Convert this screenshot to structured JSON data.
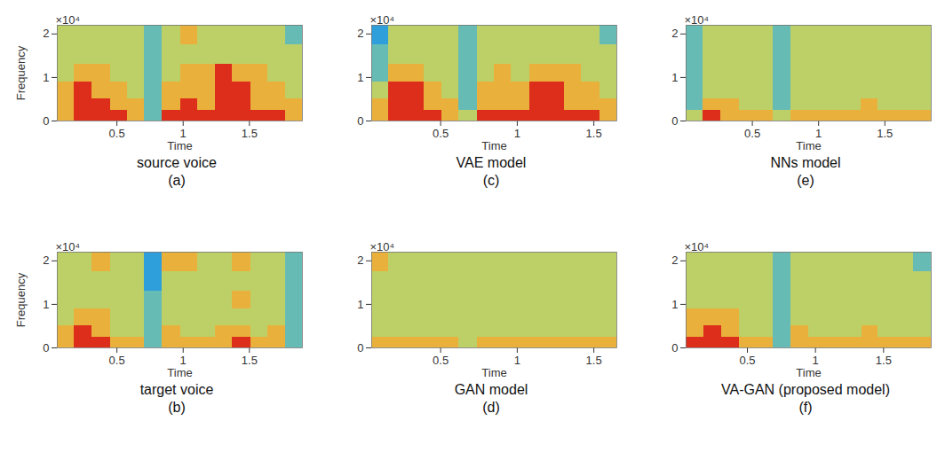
{
  "chart_data": [
    {
      "type": "heatmap",
      "panel_label": "(a)",
      "title": "source voice",
      "xlabel": "Time",
      "ylabel": "Frequency",
      "y_exponent": "×10⁴",
      "xlim": [
        0.05,
        1.9
      ],
      "ylim": [
        0,
        2.2
      ],
      "xticks": [
        0.5,
        1,
        1.5
      ],
      "yticks": [
        0,
        1,
        2
      ],
      "zlim": [
        0,
        4
      ],
      "x_bins": [
        0.05,
        0.18,
        0.31,
        0.45,
        0.58,
        0.71,
        0.84,
        0.98,
        1.11,
        1.24,
        1.37,
        1.51,
        1.64,
        1.77,
        1.9
      ],
      "y_bins": [
        0,
        0.25,
        0.5,
        0.9,
        1.3,
        1.75,
        2.2
      ],
      "cells": [
        [
          3,
          4,
          4,
          4,
          3,
          1,
          4,
          4,
          4,
          4,
          4,
          4,
          4,
          3
        ],
        [
          3,
          4,
          4,
          3,
          3,
          1,
          3,
          4,
          3,
          4,
          4,
          3,
          3,
          3
        ],
        [
          3,
          4,
          3,
          3,
          2,
          1,
          3,
          3,
          3,
          4,
          4,
          3,
          3,
          2
        ],
        [
          2,
          3,
          3,
          2,
          2,
          1,
          2,
          3,
          3,
          4,
          3,
          3,
          2,
          2
        ],
        [
          2,
          2,
          2,
          2,
          2,
          1,
          2,
          2,
          2,
          2,
          2,
          2,
          2,
          2
        ],
        [
          2,
          2,
          2,
          2,
          2,
          1,
          2,
          3,
          2,
          2,
          2,
          2,
          2,
          1
        ]
      ]
    },
    {
      "type": "heatmap",
      "panel_label": "(b)",
      "title": "target voice",
      "xlabel": "Time",
      "ylabel": "Frequency",
      "y_exponent": "×10⁴",
      "xlim": [
        0.05,
        1.9
      ],
      "ylim": [
        0,
        2.2
      ],
      "xticks": [
        0.5,
        1,
        1.5
      ],
      "yticks": [
        0,
        1,
        2
      ],
      "zlim": [
        0,
        4
      ],
      "x_bins": [
        0.05,
        0.18,
        0.31,
        0.45,
        0.58,
        0.71,
        0.84,
        0.98,
        1.11,
        1.24,
        1.37,
        1.51,
        1.64,
        1.77,
        1.9
      ],
      "y_bins": [
        0,
        0.25,
        0.5,
        0.9,
        1.3,
        1.75,
        2.2
      ],
      "cells": [
        [
          3,
          4,
          4,
          3,
          3,
          1,
          3,
          3,
          3,
          3,
          4,
          3,
          3,
          1
        ],
        [
          3,
          4,
          3,
          2,
          2,
          1,
          3,
          2,
          2,
          3,
          3,
          2,
          3,
          1
        ],
        [
          2,
          3,
          3,
          2,
          2,
          1,
          2,
          2,
          2,
          2,
          2,
          2,
          2,
          1
        ],
        [
          2,
          2,
          2,
          2,
          2,
          1,
          2,
          2,
          2,
          2,
          3,
          2,
          2,
          1
        ],
        [
          2,
          2,
          2,
          2,
          2,
          0,
          2,
          2,
          2,
          2,
          2,
          2,
          2,
          1
        ],
        [
          2,
          2,
          3,
          2,
          2,
          0,
          3,
          3,
          2,
          2,
          3,
          2,
          2,
          1
        ]
      ]
    },
    {
      "type": "heatmap",
      "panel_label": "(c)",
      "title": "VAE model",
      "xlabel": "Time",
      "y_exponent": "×10⁴",
      "xlim": [
        0.05,
        1.65
      ],
      "ylim": [
        0,
        2.2
      ],
      "xticks": [
        0.5,
        1,
        1.5
      ],
      "yticks": [
        0,
        1,
        2
      ],
      "zlim": [
        0,
        4
      ],
      "x_bins": [
        0.05,
        0.16,
        0.28,
        0.39,
        0.51,
        0.62,
        0.74,
        0.85,
        0.96,
        1.08,
        1.19,
        1.31,
        1.42,
        1.54,
        1.65
      ],
      "y_bins": [
        0,
        0.25,
        0.5,
        0.9,
        1.3,
        1.75,
        2.2
      ],
      "cells": [
        [
          3,
          4,
          4,
          4,
          3,
          2,
          4,
          4,
          4,
          4,
          4,
          4,
          4,
          3
        ],
        [
          3,
          4,
          4,
          3,
          3,
          1,
          3,
          3,
          3,
          4,
          4,
          3,
          3,
          3
        ],
        [
          2,
          4,
          4,
          3,
          2,
          1,
          3,
          3,
          3,
          4,
          4,
          3,
          3,
          2
        ],
        [
          1,
          3,
          3,
          2,
          2,
          1,
          2,
          3,
          2,
          3,
          3,
          3,
          2,
          2
        ],
        [
          1,
          2,
          2,
          2,
          2,
          1,
          2,
          2,
          2,
          2,
          2,
          2,
          2,
          2
        ],
        [
          0,
          2,
          2,
          2,
          2,
          1,
          2,
          2,
          2,
          2,
          2,
          2,
          2,
          1
        ]
      ]
    },
    {
      "type": "heatmap",
      "panel_label": "(d)",
      "title": "GAN model",
      "xlabel": "Time",
      "y_exponent": "×10⁴",
      "xlim": [
        0.05,
        1.65
      ],
      "ylim": [
        0,
        2.2
      ],
      "xticks": [
        0.5,
        1,
        1.5
      ],
      "yticks": [
        0,
        1,
        2
      ],
      "zlim": [
        0,
        4
      ],
      "x_bins": [
        0.05,
        0.16,
        0.28,
        0.39,
        0.51,
        0.62,
        0.74,
        0.85,
        0.96,
        1.08,
        1.19,
        1.31,
        1.42,
        1.54,
        1.65
      ],
      "y_bins": [
        0,
        0.25,
        0.5,
        0.9,
        1.3,
        1.75,
        2.2
      ],
      "cells": [
        [
          3,
          3,
          3,
          3,
          3,
          2,
          3,
          3,
          3,
          3,
          3,
          3,
          3,
          3
        ],
        [
          2,
          2,
          2,
          2,
          2,
          2,
          2,
          2,
          2,
          2,
          2,
          2,
          2,
          2
        ],
        [
          2,
          2,
          2,
          2,
          2,
          2,
          2,
          2,
          2,
          2,
          2,
          2,
          2,
          2
        ],
        [
          2,
          2,
          2,
          2,
          2,
          2,
          2,
          2,
          2,
          2,
          2,
          2,
          2,
          2
        ],
        [
          2,
          2,
          2,
          2,
          2,
          2,
          2,
          2,
          2,
          2,
          2,
          2,
          2,
          2
        ],
        [
          3,
          2,
          2,
          2,
          2,
          2,
          2,
          2,
          2,
          2,
          2,
          2,
          2,
          2
        ]
      ]
    },
    {
      "type": "heatmap",
      "panel_label": "(e)",
      "title": "NNs model",
      "xlabel": "Time",
      "y_exponent": "×10⁴",
      "xlim": [
        0,
        1.85
      ],
      "ylim": [
        0,
        2.2
      ],
      "xticks": [
        0.5,
        1,
        1.5
      ],
      "yticks": [
        0,
        1,
        2
      ],
      "zlim": [
        0,
        4
      ],
      "x_bins": [
        0,
        0.13,
        0.26,
        0.4,
        0.53,
        0.66,
        0.79,
        0.93,
        1.06,
        1.19,
        1.32,
        1.45,
        1.59,
        1.72,
        1.85
      ],
      "y_bins": [
        0,
        0.25,
        0.5,
        0.9,
        1.3,
        1.75,
        2.2
      ],
      "cells": [
        [
          2,
          4,
          3,
          3,
          3,
          2,
          3,
          3,
          3,
          3,
          3,
          3,
          3,
          3
        ],
        [
          1,
          3,
          3,
          2,
          2,
          1,
          2,
          2,
          2,
          2,
          3,
          2,
          2,
          2
        ],
        [
          1,
          2,
          2,
          2,
          2,
          1,
          2,
          2,
          2,
          2,
          2,
          2,
          2,
          2
        ],
        [
          1,
          2,
          2,
          2,
          2,
          1,
          2,
          2,
          2,
          2,
          2,
          2,
          2,
          2
        ],
        [
          1,
          2,
          2,
          2,
          2,
          1,
          2,
          2,
          2,
          2,
          2,
          2,
          2,
          2
        ],
        [
          1,
          2,
          2,
          2,
          2,
          1,
          2,
          2,
          2,
          2,
          2,
          2,
          2,
          2
        ]
      ]
    },
    {
      "type": "heatmap",
      "panel_label": "(f)",
      "title": "VA-GAN (proposed model)",
      "xlabel": "Time",
      "y_exponent": "×10⁴",
      "xlim": [
        0.05,
        1.85
      ],
      "ylim": [
        0,
        2.2
      ],
      "xticks": [
        0.5,
        1,
        1.5
      ],
      "yticks": [
        0,
        1,
        2
      ],
      "zlim": [
        0,
        4
      ],
      "x_bins": [
        0.05,
        0.18,
        0.31,
        0.44,
        0.56,
        0.69,
        0.82,
        0.95,
        1.08,
        1.21,
        1.34,
        1.46,
        1.59,
        1.72,
        1.85
      ],
      "y_bins": [
        0,
        0.25,
        0.5,
        0.9,
        1.3,
        1.75,
        2.2
      ],
      "cells": [
        [
          4,
          4,
          4,
          3,
          3,
          1,
          3,
          3,
          3,
          3,
          3,
          3,
          3,
          3
        ],
        [
          3,
          4,
          3,
          2,
          2,
          1,
          3,
          2,
          2,
          2,
          3,
          2,
          2,
          2
        ],
        [
          3,
          3,
          3,
          2,
          2,
          1,
          2,
          2,
          2,
          2,
          2,
          2,
          2,
          2
        ],
        [
          2,
          2,
          2,
          2,
          2,
          1,
          2,
          2,
          2,
          2,
          2,
          2,
          2,
          2
        ],
        [
          2,
          2,
          2,
          2,
          2,
          1,
          2,
          2,
          2,
          2,
          2,
          2,
          2,
          2
        ],
        [
          2,
          2,
          2,
          2,
          2,
          1,
          2,
          2,
          2,
          2,
          2,
          2,
          2,
          1
        ]
      ]
    }
  ]
}
